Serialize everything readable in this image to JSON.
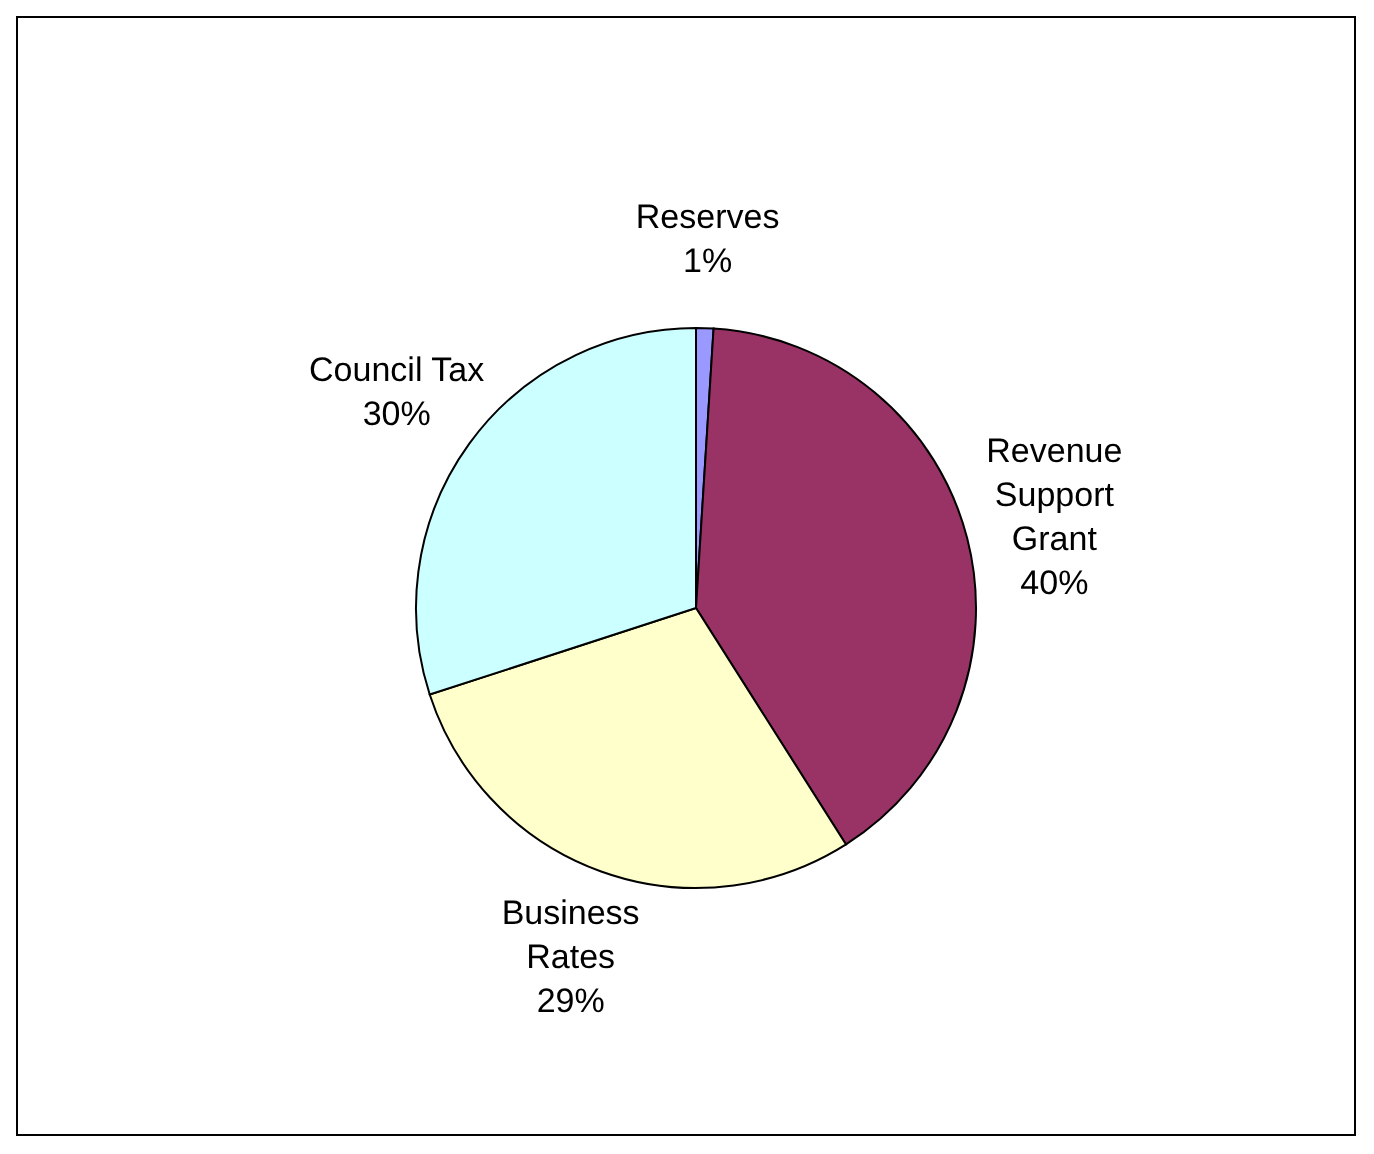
{
  "chart_data": {
    "type": "pie",
    "categories": [
      "Reserves",
      "Revenue Support Grant",
      "Business Rates",
      "Council Tax"
    ],
    "values": [
      1,
      40,
      29,
      30
    ],
    "colors": [
      "#9999ff",
      "#993366",
      "#ffffcc",
      "#ccffff"
    ],
    "value_labels": [
      "1%",
      "40%",
      "29%",
      "30%"
    ],
    "legend": false
  }
}
